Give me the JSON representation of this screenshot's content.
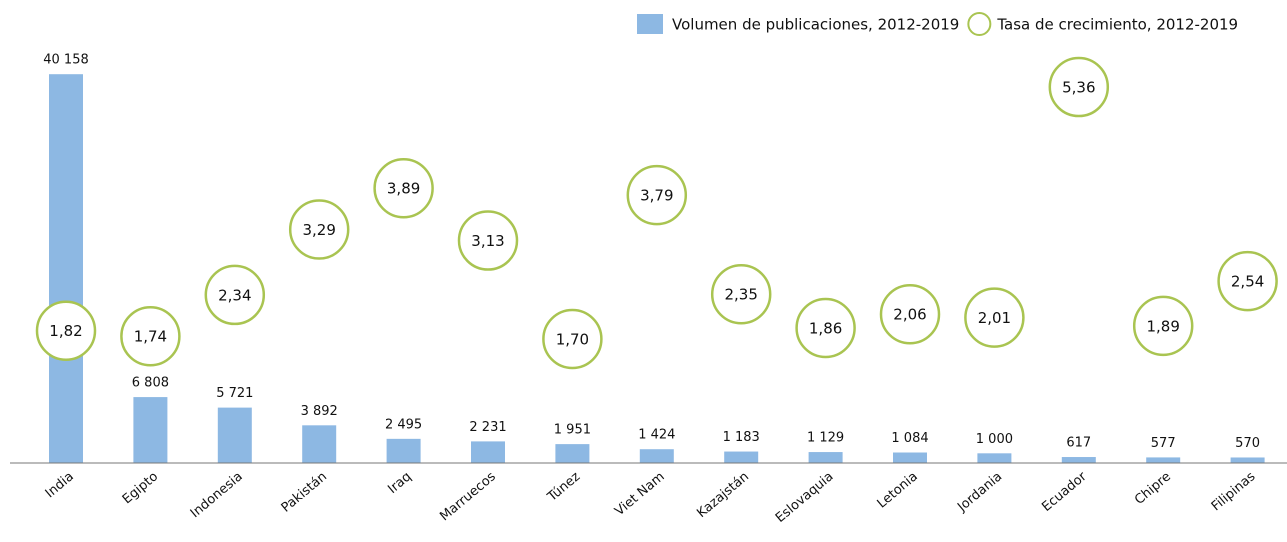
{
  "chart_data": {
    "type": "bar",
    "categories": [
      "India",
      "Egipto",
      "Indonesia",
      "Pakistán",
      "Iraq",
      "Marruecos",
      "Túnez",
      "Viet Nam",
      "Kazajstán",
      "Eslovaquia",
      "Letonia",
      "Jordania",
      "Ecuador",
      "Chipre",
      "Filipinas"
    ],
    "series": [
      {
        "name": "Volumen de publicaciones, 2012-2019",
        "type": "bar",
        "color": "#8db8e3",
        "values": [
          40158,
          6808,
          5721,
          3892,
          2495,
          2231,
          1951,
          1424,
          1183,
          1129,
          1084,
          1000,
          617,
          577,
          570
        ],
        "value_labels": [
          "40 158",
          "6 808",
          "5 721",
          "3 892",
          "2 495",
          "2 231",
          "1 951",
          "1 424",
          "1 183",
          "1 129",
          "1 084",
          "1 000",
          "617",
          "577",
          "570"
        ]
      },
      {
        "name": "Tasa de crecimiento, 2012-2019",
        "type": "scatter",
        "axis": "y2",
        "color": "#a9c451",
        "values": [
          1.82,
          1.74,
          2.34,
          3.29,
          3.89,
          3.13,
          1.7,
          3.79,
          2.35,
          1.86,
          2.06,
          2.01,
          5.36,
          1.89,
          2.54
        ],
        "value_labels": [
          "1,82",
          "1,74",
          "2,34",
          "3,29",
          "3,89",
          "3,13",
          "1,70",
          "3,79",
          "2,35",
          "1,86",
          "2,06",
          "2,01",
          "5,36",
          "1,89",
          "2,54"
        ]
      }
    ],
    "ylim": [
      0,
      44000
    ],
    "y2lim": [
      0,
      6
    ],
    "legend": "top-right"
  }
}
